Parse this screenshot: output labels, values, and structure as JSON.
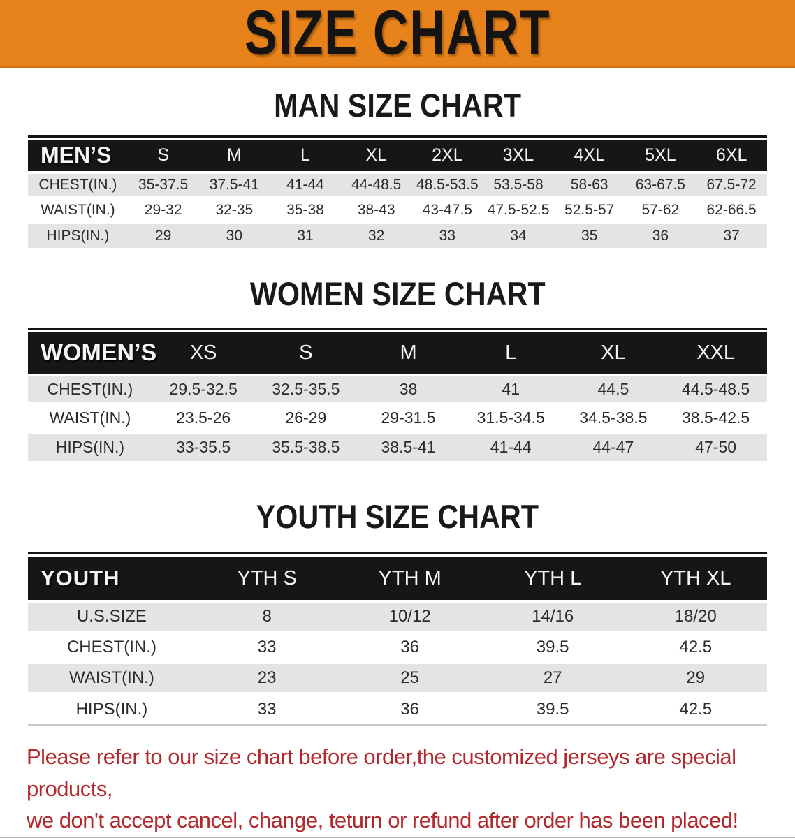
{
  "banner": {
    "title": "SIZE CHART",
    "bg": "#E8821B",
    "text_color": "#161413"
  },
  "sections": [
    {
      "heading": "MAN SIZE CHART",
      "table": {
        "header_label": "MEN’S",
        "columns": [
          "S",
          "M",
          "L",
          "XL",
          "2XL",
          "3XL",
          "4XL",
          "5XL",
          "6XL"
        ],
        "rows": [
          {
            "label": "CHEST(IN.)",
            "values": [
              "35-37.5",
              "37.5-41",
              "41-44",
              "44-48.5",
              "48.5-53.5",
              "53.5-58",
              "58-63",
              "63-67.5",
              "67.5-72"
            ]
          },
          {
            "label": "WAIST(IN.)",
            "values": [
              "29-32",
              "32-35",
              "35-38",
              "38-43",
              "43-47.5",
              "47.5-52.5",
              "52.5-57",
              "57-62",
              "62-66.5"
            ]
          },
          {
            "label": "HIPS(IN.)",
            "values": [
              "29",
              "30",
              "31",
              "32",
              "33",
              "34",
              "35",
              "36",
              "37"
            ]
          }
        ]
      }
    },
    {
      "heading": "WOMEN SIZE CHART",
      "table": {
        "header_label": "WOMEN’S",
        "columns": [
          "XS",
          "S",
          "M",
          "L",
          "XL",
          "XXL"
        ],
        "rows": [
          {
            "label": "CHEST(IN.)",
            "values": [
              "29.5-32.5",
              "32.5-35.5",
              "38",
              "41",
              "44.5",
              "44.5-48.5"
            ]
          },
          {
            "label": "WAIST(IN.)",
            "values": [
              "23.5-26",
              "26-29",
              "29-31.5",
              "31.5-34.5",
              "34.5-38.5",
              "38.5-42.5"
            ]
          },
          {
            "label": "HIPS(IN.)",
            "values": [
              "33-35.5",
              "35.5-38.5",
              "38.5-41",
              "41-44",
              "44-47",
              "47-50"
            ]
          }
        ]
      }
    },
    {
      "heading": "YOUTH SIZE CHART",
      "table": {
        "header_label": "YOUTH",
        "columns": [
          "YTH S",
          "YTH M",
          "YTH L",
          "YTH XL"
        ],
        "rows": [
          {
            "label": "U.S.SIZE",
            "values": [
              "8",
              "10/12",
              "14/16",
              "18/20"
            ]
          },
          {
            "label": "CHEST(IN.)",
            "values": [
              "33",
              "36",
              "39.5",
              "42.5"
            ]
          },
          {
            "label": "WAIST(IN.)",
            "values": [
              "23",
              "25",
              "27",
              "29"
            ]
          },
          {
            "label": "HIPS(IN.)",
            "values": [
              "33",
              "36",
              "39.5",
              "42.5"
            ]
          }
        ]
      }
    }
  ],
  "disclaimer": {
    "line1": "Please refer to our size chart before order,the customized jerseys are special products,",
    "line2": "we don't accept cancel, change, teturn or refund after order has been placed!",
    "color": "#B3282C"
  }
}
